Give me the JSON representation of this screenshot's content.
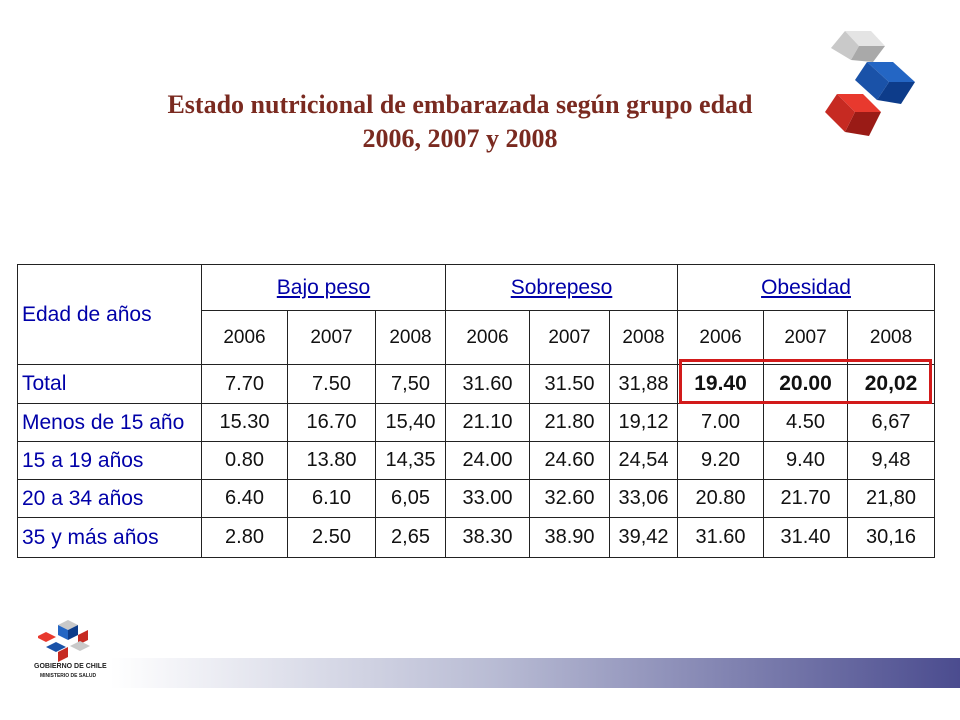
{
  "title": {
    "line1": "Estado nutricional de embarazada según grupo edad",
    "line2": "2006, 2007 y 2008"
  },
  "table": {
    "row_header": "Edad de años",
    "groups": [
      "Bajo peso",
      "Sobrepeso",
      "Obesidad"
    ],
    "years": [
      "2006",
      "2007",
      "2008",
      "2006",
      "2007",
      "2008",
      "2006",
      "2007",
      "2008"
    ],
    "rows": [
      {
        "label": "Total",
        "values": [
          "7.70",
          "7.50",
          "7,50",
          "31.60",
          "31.50",
          "31,88",
          "19.40",
          "20.00",
          "20,02"
        ]
      },
      {
        "label": "Menos de 15 año",
        "values": [
          "15.30",
          "16.70",
          "15,40",
          "21.10",
          "21.80",
          "19,12",
          "7.00",
          "4.50",
          "6,67"
        ]
      },
      {
        "label": "15 a 19 años",
        "values": [
          "0.80",
          "13.80",
          "14,35",
          "24.00",
          "24.60",
          "24,54",
          "9.20",
          "9.40",
          "9,48"
        ]
      },
      {
        "label": "20 a 34 años",
        "values": [
          "6.40",
          "6.10",
          "6,05",
          "33.00",
          "32.60",
          "33,06",
          "20.80",
          "21.70",
          "21,80"
        ]
      },
      {
        "label": "35 y más años",
        "values": [
          "2.80",
          "2.50",
          "2,65",
          "38.30",
          "38.90",
          "39,42",
          "31.60",
          "31.40",
          "30,16"
        ]
      }
    ]
  },
  "footer": {
    "gov_line1": "GOBIERNO DE CHILE",
    "gov_line2": "MINISTERIO DE SALUD"
  },
  "colors": {
    "title": "#7a2a20",
    "table_label": "#0000a8",
    "highlight": "#d21a1a",
    "footer_bar": "#4b4c8f"
  },
  "icons": {
    "top_right_logo": "ministry-cubes-logo",
    "bottom_left_logo": "gobierno-de-chile-emblem"
  }
}
